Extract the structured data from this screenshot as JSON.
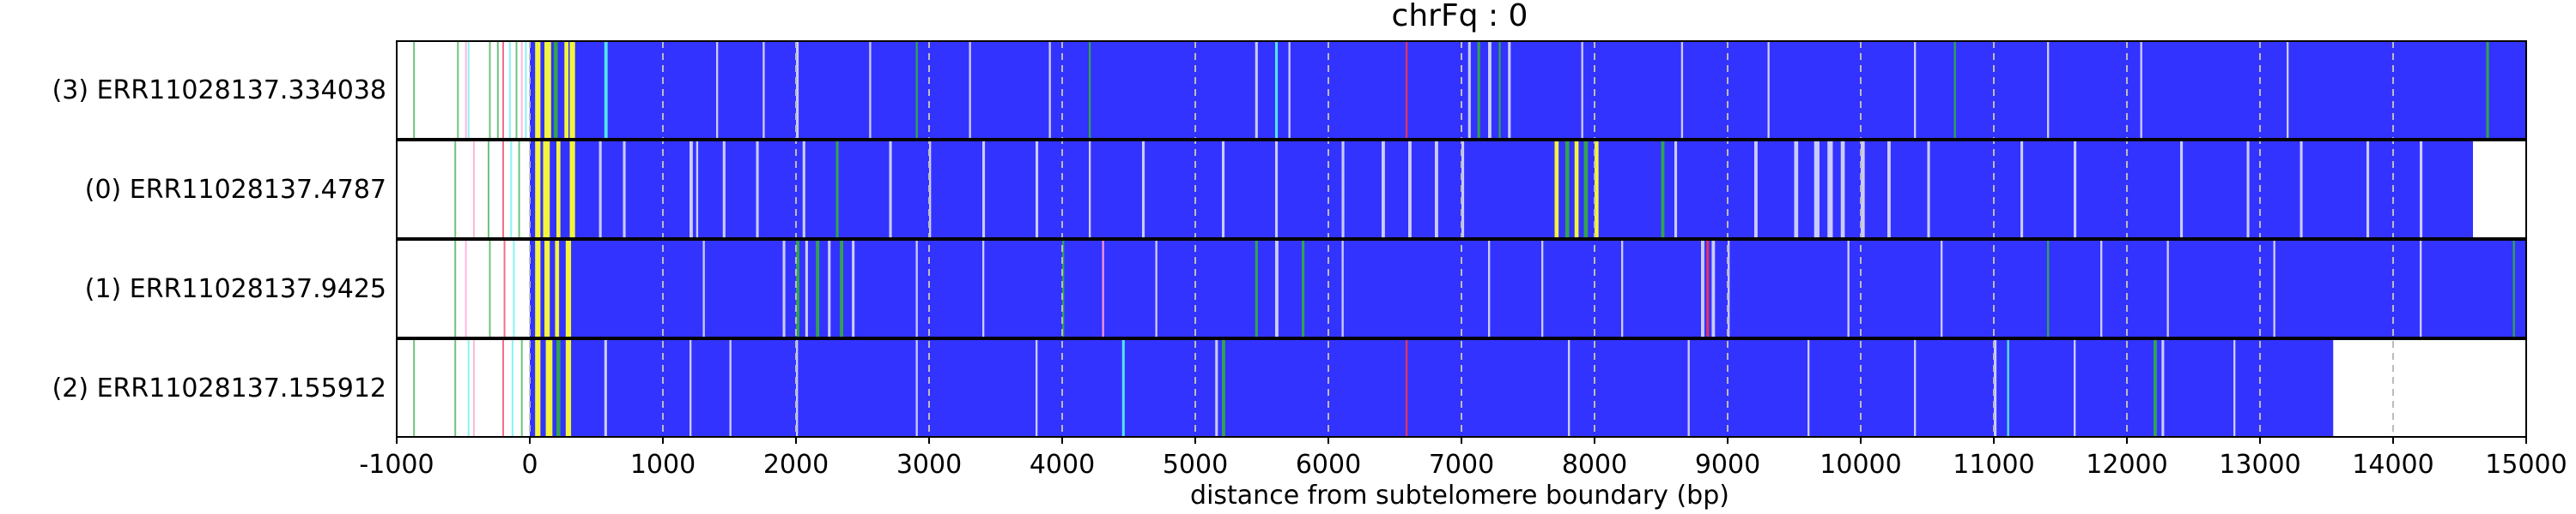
{
  "chart_data": {
    "type": "heatmap",
    "title": "chrFq : 0",
    "xlabel": "distance from subtelomere boundary (bp)",
    "xlim": [
      -1000,
      15000
    ],
    "xticks": [
      -1000,
      0,
      1000,
      2000,
      3000,
      4000,
      5000,
      6000,
      7000,
      8000,
      9000,
      10000,
      11000,
      12000,
      13000,
      14000,
      15000
    ],
    "grid": "vertical dashed",
    "colors": {
      "background": "#3333ff",
      "highlight": "#ffff33",
      "light": "#ffffff",
      "green": "#33aa44",
      "cyan": "#55eeee",
      "red": "#ee3355",
      "pink": "#ff99cc",
      "grid": "#bbbbbb"
    },
    "rows": [
      {
        "label": "(3) ERR11028137.334038",
        "start": 0,
        "end": 15000,
        "pre": [
          {
            "x": -870,
            "c": "green"
          },
          {
            "x": -540,
            "c": "green"
          },
          {
            "x": -480,
            "c": "pink"
          },
          {
            "x": -460,
            "c": "cyan"
          },
          {
            "x": -300,
            "c": "green"
          },
          {
            "x": -240,
            "c": "green"
          },
          {
            "x": -200,
            "c": "red"
          },
          {
            "x": -150,
            "c": "cyan"
          },
          {
            "x": -100,
            "c": "green"
          },
          {
            "x": -60,
            "c": "pink"
          },
          {
            "x": -30,
            "c": "cyan"
          }
        ],
        "marks": [
          {
            "x": 40,
            "w": 40,
            "c": "highlight"
          },
          {
            "x": 110,
            "w": 50,
            "c": "highlight"
          },
          {
            "x": 180,
            "w": 30,
            "c": "green"
          },
          {
            "x": 260,
            "w": 30,
            "c": "highlight"
          },
          {
            "x": 300,
            "w": 40,
            "c": "highlight"
          },
          {
            "x": 560,
            "w": 25,
            "c": "cyan"
          },
          {
            "x": 1400,
            "w": 15,
            "c": "light"
          },
          {
            "x": 1750,
            "w": 15,
            "c": "light"
          },
          {
            "x": 2000,
            "w": 20,
            "c": "light"
          },
          {
            "x": 2550,
            "w": 15,
            "c": "light"
          },
          {
            "x": 2900,
            "w": 15,
            "c": "green"
          },
          {
            "x": 3300,
            "w": 15,
            "c": "light"
          },
          {
            "x": 3900,
            "w": 15,
            "c": "light"
          },
          {
            "x": 4200,
            "w": 15,
            "c": "green"
          },
          {
            "x": 5450,
            "w": 20,
            "c": "light"
          },
          {
            "x": 5600,
            "w": 20,
            "c": "cyan"
          },
          {
            "x": 5700,
            "w": 15,
            "c": "light"
          },
          {
            "x": 6580,
            "w": 15,
            "c": "red"
          },
          {
            "x": 7050,
            "w": 20,
            "c": "light"
          },
          {
            "x": 7120,
            "w": 20,
            "c": "green"
          },
          {
            "x": 7200,
            "w": 25,
            "c": "light"
          },
          {
            "x": 7280,
            "w": 15,
            "c": "green"
          },
          {
            "x": 7350,
            "w": 20,
            "c": "light"
          },
          {
            "x": 7900,
            "w": 15,
            "c": "light"
          },
          {
            "x": 8650,
            "w": 15,
            "c": "light"
          },
          {
            "x": 9300,
            "w": 15,
            "c": "light"
          },
          {
            "x": 10400,
            "w": 15,
            "c": "light"
          },
          {
            "x": 10700,
            "w": 15,
            "c": "green"
          },
          {
            "x": 11400,
            "w": 15,
            "c": "light"
          },
          {
            "x": 12100,
            "w": 15,
            "c": "light"
          },
          {
            "x": 13200,
            "w": 15,
            "c": "light"
          },
          {
            "x": 14700,
            "w": 20,
            "c": "green"
          }
        ]
      },
      {
        "label": "(0) ERR11028137.4787",
        "start": 0,
        "end": 14600,
        "pre": [
          {
            "x": -560,
            "c": "green"
          },
          {
            "x": -420,
            "c": "pink"
          },
          {
            "x": -310,
            "c": "green"
          },
          {
            "x": -200,
            "c": "red"
          },
          {
            "x": -140,
            "c": "cyan"
          },
          {
            "x": -80,
            "c": "green"
          }
        ],
        "marks": [
          {
            "x": 40,
            "w": 40,
            "c": "highlight"
          },
          {
            "x": 100,
            "w": 50,
            "c": "highlight"
          },
          {
            "x": 200,
            "w": 30,
            "c": "highlight"
          },
          {
            "x": 300,
            "w": 40,
            "c": "highlight"
          },
          {
            "x": 520,
            "w": 20,
            "c": "light"
          },
          {
            "x": 700,
            "w": 20,
            "c": "light"
          },
          {
            "x": 1200,
            "w": 25,
            "c": "light"
          },
          {
            "x": 1250,
            "w": 15,
            "c": "light"
          },
          {
            "x": 1450,
            "w": 20,
            "c": "light"
          },
          {
            "x": 1700,
            "w": 20,
            "c": "light"
          },
          {
            "x": 2050,
            "w": 20,
            "c": "light"
          },
          {
            "x": 2300,
            "w": 20,
            "c": "green"
          },
          {
            "x": 2700,
            "w": 20,
            "c": "light"
          },
          {
            "x": 3000,
            "w": 15,
            "c": "light"
          },
          {
            "x": 3400,
            "w": 20,
            "c": "light"
          },
          {
            "x": 3800,
            "w": 20,
            "c": "light"
          },
          {
            "x": 4200,
            "w": 15,
            "c": "light"
          },
          {
            "x": 4600,
            "w": 20,
            "c": "light"
          },
          {
            "x": 5200,
            "w": 20,
            "c": "light"
          },
          {
            "x": 5600,
            "w": 20,
            "c": "light"
          },
          {
            "x": 6100,
            "w": 20,
            "c": "light"
          },
          {
            "x": 6400,
            "w": 25,
            "c": "light"
          },
          {
            "x": 6600,
            "w": 25,
            "c": "light"
          },
          {
            "x": 6800,
            "w": 25,
            "c": "light"
          },
          {
            "x": 7000,
            "w": 20,
            "c": "light"
          },
          {
            "x": 7700,
            "w": 30,
            "c": "highlight"
          },
          {
            "x": 7780,
            "w": 30,
            "c": "green"
          },
          {
            "x": 7850,
            "w": 30,
            "c": "highlight"
          },
          {
            "x": 7920,
            "w": 30,
            "c": "green"
          },
          {
            "x": 8000,
            "w": 30,
            "c": "highlight"
          },
          {
            "x": 8500,
            "w": 25,
            "c": "green"
          },
          {
            "x": 8600,
            "w": 20,
            "c": "light"
          },
          {
            "x": 9200,
            "w": 25,
            "c": "light"
          },
          {
            "x": 9500,
            "w": 30,
            "c": "light"
          },
          {
            "x": 9650,
            "w": 40,
            "c": "light"
          },
          {
            "x": 9750,
            "w": 40,
            "c": "light"
          },
          {
            "x": 9850,
            "w": 30,
            "c": "light"
          },
          {
            "x": 10000,
            "w": 30,
            "c": "light"
          },
          {
            "x": 10200,
            "w": 25,
            "c": "light"
          },
          {
            "x": 10500,
            "w": 20,
            "c": "light"
          },
          {
            "x": 11200,
            "w": 20,
            "c": "light"
          },
          {
            "x": 11600,
            "w": 20,
            "c": "light"
          },
          {
            "x": 12400,
            "w": 20,
            "c": "light"
          },
          {
            "x": 12900,
            "w": 20,
            "c": "light"
          },
          {
            "x": 13300,
            "w": 20,
            "c": "light"
          },
          {
            "x": 13800,
            "w": 20,
            "c": "light"
          },
          {
            "x": 14200,
            "w": 20,
            "c": "light"
          }
        ]
      },
      {
        "label": "(1) ERR11028137.9425",
        "start": 0,
        "end": 15000,
        "pre": [
          {
            "x": -560,
            "c": "green"
          },
          {
            "x": -480,
            "c": "pink"
          },
          {
            "x": -300,
            "c": "green"
          },
          {
            "x": -190,
            "c": "red"
          },
          {
            "x": -120,
            "c": "cyan"
          }
        ],
        "marks": [
          {
            "x": 40,
            "w": 40,
            "c": "highlight"
          },
          {
            "x": 110,
            "w": 40,
            "c": "highlight"
          },
          {
            "x": 190,
            "w": 30,
            "c": "highlight"
          },
          {
            "x": 270,
            "w": 40,
            "c": "highlight"
          },
          {
            "x": 1300,
            "w": 15,
            "c": "light"
          },
          {
            "x": 1900,
            "w": 20,
            "c": "light"
          },
          {
            "x": 2000,
            "w": 25,
            "c": "green"
          },
          {
            "x": 2070,
            "w": 20,
            "c": "light"
          },
          {
            "x": 2150,
            "w": 25,
            "c": "green"
          },
          {
            "x": 2240,
            "w": 20,
            "c": "light"
          },
          {
            "x": 2330,
            "w": 25,
            "c": "green"
          },
          {
            "x": 2420,
            "w": 20,
            "c": "light"
          },
          {
            "x": 2900,
            "w": 15,
            "c": "light"
          },
          {
            "x": 3400,
            "w": 15,
            "c": "light"
          },
          {
            "x": 4000,
            "w": 15,
            "c": "green"
          },
          {
            "x": 4300,
            "w": 15,
            "c": "pink"
          },
          {
            "x": 4700,
            "w": 15,
            "c": "light"
          },
          {
            "x": 5450,
            "w": 20,
            "c": "green"
          },
          {
            "x": 5600,
            "w": 25,
            "c": "light"
          },
          {
            "x": 5800,
            "w": 20,
            "c": "green"
          },
          {
            "x": 6100,
            "w": 15,
            "c": "light"
          },
          {
            "x": 7200,
            "w": 15,
            "c": "light"
          },
          {
            "x": 7600,
            "w": 15,
            "c": "light"
          },
          {
            "x": 8200,
            "w": 15,
            "c": "light"
          },
          {
            "x": 8800,
            "w": 25,
            "c": "light"
          },
          {
            "x": 8840,
            "w": 20,
            "c": "red"
          },
          {
            "x": 8880,
            "w": 25,
            "c": "light"
          },
          {
            "x": 9000,
            "w": 15,
            "c": "light"
          },
          {
            "x": 9900,
            "w": 15,
            "c": "light"
          },
          {
            "x": 10600,
            "w": 15,
            "c": "light"
          },
          {
            "x": 11400,
            "w": 15,
            "c": "green"
          },
          {
            "x": 11800,
            "w": 15,
            "c": "light"
          },
          {
            "x": 12300,
            "w": 15,
            "c": "light"
          },
          {
            "x": 13100,
            "w": 15,
            "c": "light"
          },
          {
            "x": 14200,
            "w": 15,
            "c": "light"
          },
          {
            "x": 14900,
            "w": 15,
            "c": "green"
          }
        ]
      },
      {
        "label": "(2) ERR11028137.155912",
        "start": 0,
        "end": 13550,
        "pre": [
          {
            "x": -870,
            "c": "green"
          },
          {
            "x": -560,
            "c": "green"
          },
          {
            "x": -460,
            "c": "cyan"
          },
          {
            "x": -420,
            "c": "pink"
          },
          {
            "x": -200,
            "c": "red"
          },
          {
            "x": -130,
            "c": "cyan"
          },
          {
            "x": -60,
            "c": "green"
          }
        ],
        "marks": [
          {
            "x": 40,
            "w": 40,
            "c": "highlight"
          },
          {
            "x": 120,
            "w": 50,
            "c": "highlight"
          },
          {
            "x": 200,
            "w": 30,
            "c": "green"
          },
          {
            "x": 270,
            "w": 40,
            "c": "highlight"
          },
          {
            "x": 560,
            "w": 20,
            "c": "light"
          },
          {
            "x": 1200,
            "w": 15,
            "c": "light"
          },
          {
            "x": 1500,
            "w": 15,
            "c": "light"
          },
          {
            "x": 2000,
            "w": 15,
            "c": "light"
          },
          {
            "x": 2900,
            "w": 15,
            "c": "light"
          },
          {
            "x": 3800,
            "w": 15,
            "c": "light"
          },
          {
            "x": 4450,
            "w": 20,
            "c": "cyan"
          },
          {
            "x": 5150,
            "w": 20,
            "c": "light"
          },
          {
            "x": 5200,
            "w": 25,
            "c": "green"
          },
          {
            "x": 6580,
            "w": 15,
            "c": "red"
          },
          {
            "x": 7800,
            "w": 15,
            "c": "light"
          },
          {
            "x": 8700,
            "w": 15,
            "c": "light"
          },
          {
            "x": 9600,
            "w": 15,
            "c": "light"
          },
          {
            "x": 10400,
            "w": 15,
            "c": "light"
          },
          {
            "x": 11000,
            "w": 20,
            "c": "light"
          },
          {
            "x": 11100,
            "w": 15,
            "c": "cyan"
          },
          {
            "x": 11600,
            "w": 15,
            "c": "light"
          },
          {
            "x": 12200,
            "w": 25,
            "c": "green"
          },
          {
            "x": 12260,
            "w": 20,
            "c": "light"
          },
          {
            "x": 12800,
            "w": 15,
            "c": "light"
          }
        ]
      }
    ]
  }
}
